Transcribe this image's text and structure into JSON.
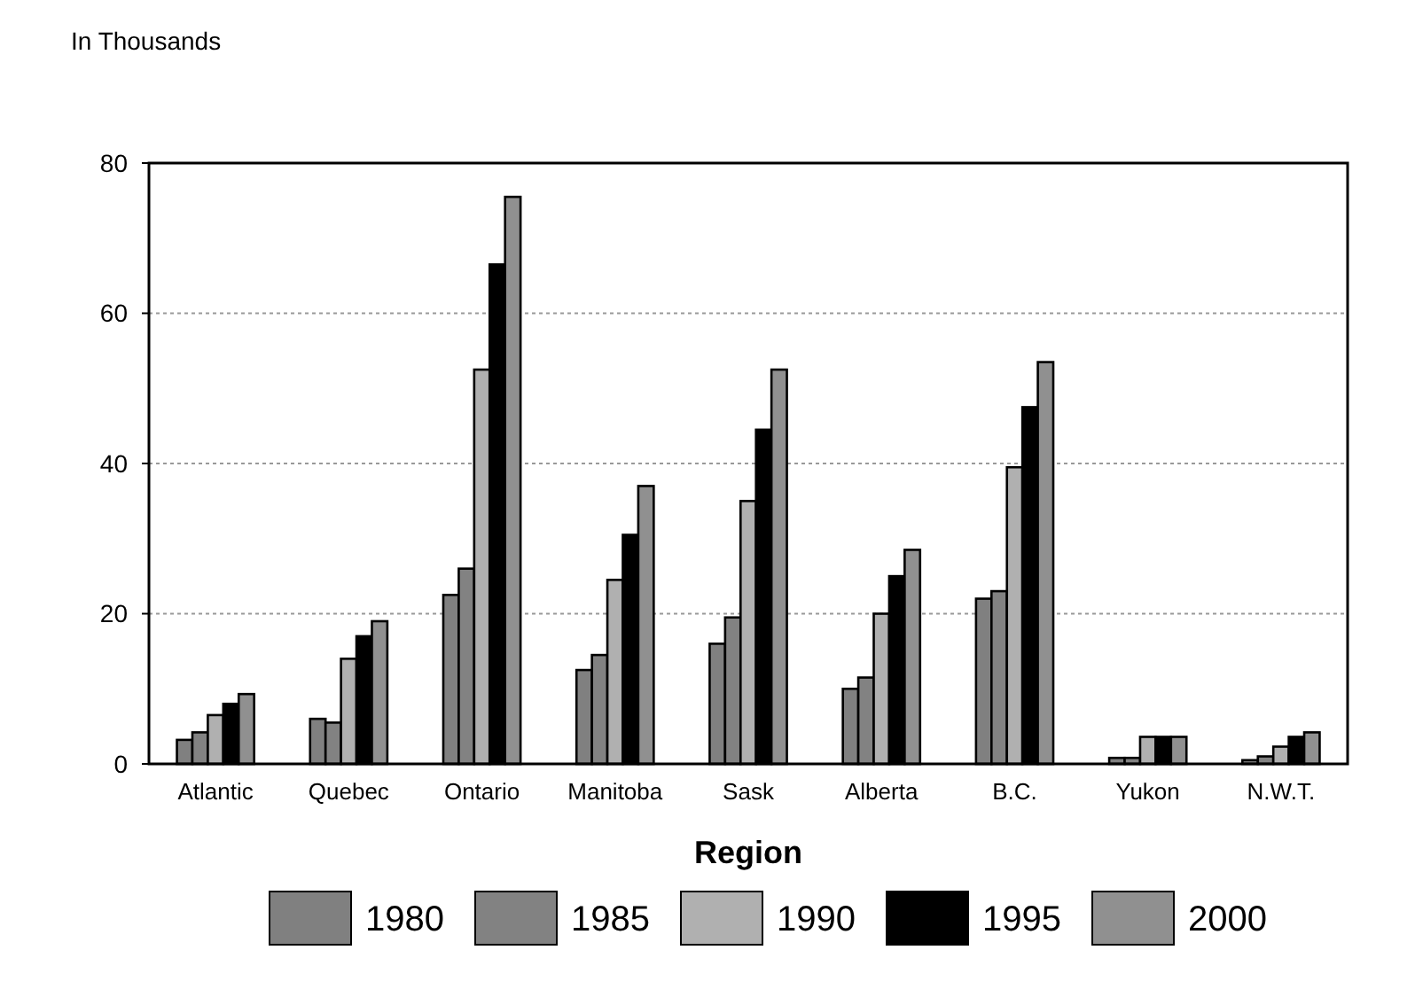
{
  "chart_data": {
    "type": "bar",
    "ylabel": "In Thousands",
    "xlabel": "Region",
    "categories": [
      "Atlantic",
      "Quebec",
      "Ontario",
      "Manitoba",
      "Sask",
      "Alberta",
      "B.C.",
      "Yukon",
      "N.W.T."
    ],
    "series": [
      {
        "name": "1980",
        "color": "#808080",
        "values": [
          3.2,
          6,
          22.5,
          12.5,
          16,
          10,
          22,
          0.8,
          0.5
        ]
      },
      {
        "name": "1985",
        "color": "#828282",
        "values": [
          4.2,
          5.5,
          26,
          14.5,
          19.5,
          11.5,
          23,
          0.8,
          1
        ]
      },
      {
        "name": "1990",
        "color": "#b0b0b0",
        "values": [
          6.5,
          14,
          52.5,
          24.5,
          35,
          20,
          39.5,
          3.6,
          2.3
        ]
      },
      {
        "name": "1995",
        "color": "#000000",
        "values": [
          8,
          17,
          66.5,
          30.5,
          44.5,
          25,
          47.5,
          3.6,
          3.6
        ]
      },
      {
        "name": "2000",
        "color": "#909090",
        "values": [
          9.3,
          19,
          75.5,
          37,
          52.5,
          28.5,
          53.5,
          3.6,
          4.2
        ]
      }
    ],
    "ylim": [
      0,
      80
    ],
    "yticks": [
      0,
      20,
      40,
      60,
      80
    ],
    "grid": "y",
    "legend": "bottom"
  }
}
